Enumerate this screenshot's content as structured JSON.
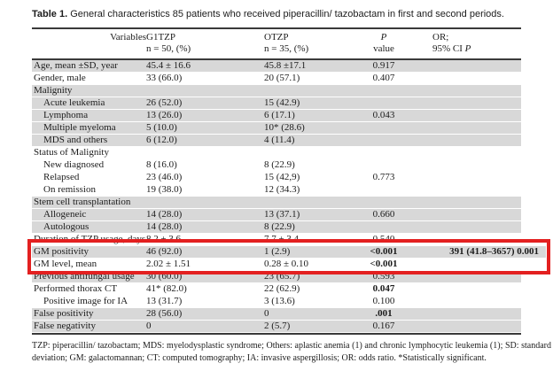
{
  "caption": {
    "label": "Table 1.",
    "text": "General characteristics 85 patients who received piperacillin/ tazobactam in first and second periods."
  },
  "header": {
    "variables": "Variables",
    "g1tzp_line1": "G1TZP",
    "g1tzp_line2": "n = 50, (%)",
    "otzp_line1": "OTZP",
    "otzp_line2": "n = 35, (%)",
    "p_line1": "P",
    "p_line2": "value",
    "or_line1": "OR;",
    "or_line2": "95% CI",
    "or_line2_p": "P"
  },
  "table": {
    "rows": [
      {
        "label": "Age, mean ±SD, year",
        "indent": false,
        "g1tzp": "45.4 ± 16.6",
        "otzp": "45.8 ±17.1",
        "p": "0.917",
        "p_bold": false,
        "or": "",
        "or_bold": false,
        "shaded": true,
        "extended": false
      },
      {
        "label": "Gender, male",
        "indent": false,
        "g1tzp": "33 (66.0)",
        "otzp": "20 (57.1)",
        "p": "0.407",
        "p_bold": false,
        "or": "",
        "or_bold": false,
        "shaded": false,
        "extended": false
      },
      {
        "label": "Malignity",
        "indent": false,
        "g1tzp": "",
        "otzp": "",
        "p": "",
        "p_bold": false,
        "or": "",
        "or_bold": false,
        "shaded": true,
        "extended": false
      },
      {
        "label": "Acute leukemia",
        "indent": true,
        "g1tzp": "26 (52.0)",
        "otzp": "15 (42.9)",
        "p": "",
        "p_bold": false,
        "or": "",
        "or_bold": false,
        "shaded": true,
        "extended": false
      },
      {
        "label": "Lymphoma",
        "indent": true,
        "g1tzp": "13 (26.0)",
        "otzp": "6 (17.1)",
        "p": "0.043",
        "p_bold": false,
        "or": "",
        "or_bold": false,
        "shaded": true,
        "extended": false
      },
      {
        "label": "Multiple myeloma",
        "indent": true,
        "g1tzp": "5 (10.0)",
        "otzp": "10* (28.6)",
        "p": "",
        "p_bold": false,
        "or": "",
        "or_bold": false,
        "shaded": true,
        "extended": false
      },
      {
        "label": "MDS and others",
        "indent": true,
        "g1tzp": "6 (12.0)",
        "otzp": "4 (11.4)",
        "p": "",
        "p_bold": false,
        "or": "",
        "or_bold": false,
        "shaded": true,
        "extended": false
      },
      {
        "label": "Status of Malignity",
        "indent": false,
        "g1tzp": "",
        "otzp": "",
        "p": "",
        "p_bold": false,
        "or": "",
        "or_bold": false,
        "shaded": false,
        "extended": false
      },
      {
        "label": "New diagnosed",
        "indent": true,
        "g1tzp": "8 (16.0)",
        "otzp": "8 (22.9)",
        "p": "",
        "p_bold": false,
        "or": "",
        "or_bold": false,
        "shaded": false,
        "extended": false
      },
      {
        "label": "Relapsed",
        "indent": true,
        "g1tzp": "23 (46.0)",
        "otzp": "15 (42,9)",
        "p": "0.773",
        "p_bold": false,
        "or": "",
        "or_bold": false,
        "shaded": false,
        "extended": false
      },
      {
        "label": "On remission",
        "indent": true,
        "g1tzp": "19 (38.0)",
        "otzp": "12 (34.3)",
        "p": "",
        "p_bold": false,
        "or": "",
        "or_bold": false,
        "shaded": false,
        "extended": false
      },
      {
        "label": "Stem cell transplantation",
        "indent": false,
        "g1tzp": "",
        "otzp": "",
        "p": "",
        "p_bold": false,
        "or": "",
        "or_bold": false,
        "shaded": true,
        "extended": false
      },
      {
        "label": "Allogeneic",
        "indent": true,
        "g1tzp": "14 (28.0)",
        "otzp": "13 (37.1)",
        "p": "0.660",
        "p_bold": false,
        "or": "",
        "or_bold": false,
        "shaded": true,
        "extended": false
      },
      {
        "label": "Autologous",
        "indent": true,
        "g1tzp": "14 (28.0)",
        "otzp": "8 (22.9)",
        "p": "",
        "p_bold": false,
        "or": "",
        "or_bold": false,
        "shaded": true,
        "extended": false
      },
      {
        "label": "Duration of TZP usage, days",
        "indent": false,
        "g1tzp": "8.2 ± 3.6",
        "otzp": "7.7 ± 3.4",
        "p": "0.540",
        "p_bold": false,
        "or": "",
        "or_bold": false,
        "shaded": false,
        "extended": false
      },
      {
        "label": "GM positivity",
        "indent": false,
        "g1tzp": "46 (92.0)",
        "otzp": "1 (2.9)",
        "p": "<0.001",
        "p_bold": true,
        "or": "391 (41.8–3657) 0.001",
        "or_bold": true,
        "shaded": true,
        "extended": true
      },
      {
        "label": "GM level, mean",
        "indent": false,
        "g1tzp": "2.02 ± 1.51",
        "otzp": "0.28 ± 0.10",
        "p": "<0.001",
        "p_bold": true,
        "or": "",
        "or_bold": false,
        "shaded": false,
        "extended": false
      },
      {
        "label": "Previous antifungal usage",
        "indent": false,
        "g1tzp": "30 (60.0)",
        "otzp": "23 (65.7)",
        "p": "0.593",
        "p_bold": false,
        "or": "",
        "or_bold": false,
        "shaded": true,
        "extended": false
      },
      {
        "label": "Performed thorax CT",
        "indent": false,
        "g1tzp": "41* (82.0)",
        "otzp": "22 (62.9)",
        "p": "0.047",
        "p_bold": true,
        "or": "",
        "or_bold": false,
        "shaded": false,
        "extended": false
      },
      {
        "label": "Positive image for IA",
        "indent": true,
        "g1tzp": "13 (31.7)",
        "otzp": "3 (13.6)",
        "p": "0.100",
        "p_bold": false,
        "or": "",
        "or_bold": false,
        "shaded": false,
        "extended": false
      },
      {
        "label": "False positivity",
        "indent": false,
        "g1tzp": "28 (56.0)",
        "otzp": "0",
        "p": ".001",
        "p_bold": true,
        "or": "",
        "or_bold": false,
        "shaded": true,
        "extended": false
      },
      {
        "label": "False negativity",
        "indent": false,
        "g1tzp": "0",
        "otzp": "2 (5.7)",
        "p": "0.167",
        "p_bold": false,
        "or": "",
        "or_bold": false,
        "shaded": true,
        "extended": false
      }
    ]
  },
  "footnote": "TZP: piperacillin/ tazobactam; MDS: myelodysplastic syndrome; Others: aplastic anemia (1) and chronic lymphocytic leukemia (1); SD: standard deviation; GM: galactomannan; CT: computed tomography; IA: invasive aspergillosis; OR: odds ratio. *Statistically significant.",
  "annotation": {
    "highlight_box_color": "#e32020",
    "row_shade_color": "#d8d8d8"
  }
}
